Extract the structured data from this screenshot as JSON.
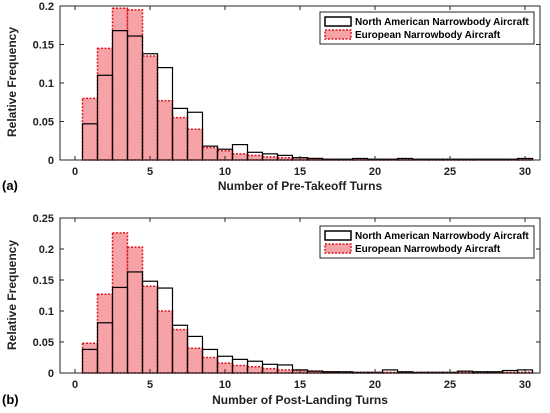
{
  "colors": {
    "na_edge": "#000000",
    "eu_edge": "#e0141e",
    "eu_fill": "#f6a3a8",
    "axis": "#262626"
  },
  "chart_data": [
    {
      "type": "bar",
      "panel_label": "(a)",
      "xlabel": "Number of Pre-Takeoff Turns",
      "ylabel": "Relative Frequency",
      "xlim": [
        -1,
        31
      ],
      "ylim": [
        0,
        0.2
      ],
      "xticks": [
        0,
        5,
        10,
        15,
        20,
        25,
        30
      ],
      "yticks": [
        0,
        0.05,
        0.1,
        0.15,
        0.2
      ],
      "ytick_labels": [
        "0",
        "0.05",
        "0.1",
        "0.15",
        "0.2"
      ],
      "grid": false,
      "legend_position": "top-right",
      "categories": [
        1,
        2,
        3,
        4,
        5,
        6,
        7,
        8,
        9,
        10,
        11,
        12,
        13,
        14,
        15,
        16,
        17,
        18,
        19,
        20,
        21,
        22,
        23,
        24,
        25,
        26,
        27,
        28,
        29,
        30
      ],
      "series": [
        {
          "name": "European Narrowbody Aircraft",
          "style": "eu",
          "values": [
            0.08,
            0.145,
            0.197,
            0.195,
            0.135,
            0.077,
            0.055,
            0.04,
            0.016,
            0.012,
            0.008,
            0.006,
            0.004,
            0.003,
            0.003,
            0.002,
            0.001,
            0.001,
            0.001,
            0.001,
            0.001,
            0.001,
            0.001,
            0.001,
            0.001,
            0.001,
            0.001,
            0.001,
            0.001,
            0.001
          ]
        },
        {
          "name": "North American Narrowbody Aircraft",
          "style": "na",
          "values": [
            0.047,
            0.11,
            0.168,
            0.161,
            0.138,
            0.12,
            0.067,
            0.062,
            0.018,
            0.014,
            0.02,
            0.01,
            0.008,
            0.006,
            0.003,
            0.002,
            0.001,
            0.001,
            0.002,
            0.001,
            0.001,
            0.002,
            0.001,
            0.001,
            0.001,
            0.001,
            0.001,
            0.001,
            0.001,
            0.002
          ]
        }
      ]
    },
    {
      "type": "bar",
      "panel_label": "(b)",
      "xlabel": "Number of Post-Landing Turns",
      "ylabel": "Relative Frequency",
      "xlim": [
        -1,
        31
      ],
      "ylim": [
        0,
        0.25
      ],
      "xticks": [
        0,
        5,
        10,
        15,
        20,
        25,
        30
      ],
      "yticks": [
        0,
        0.05,
        0.1,
        0.15,
        0.2,
        0.25
      ],
      "ytick_labels": [
        "0",
        "0.05",
        "0.1",
        "0.15",
        "0.2",
        "0.25"
      ],
      "grid": false,
      "legend_position": "top-right",
      "categories": [
        1,
        2,
        3,
        4,
        5,
        6,
        7,
        8,
        9,
        10,
        11,
        12,
        13,
        14,
        15,
        16,
        17,
        18,
        19,
        20,
        21,
        22,
        23,
        24,
        25,
        26,
        27,
        28,
        29,
        30
      ],
      "series": [
        {
          "name": "European Narrowbody Aircraft",
          "style": "eu",
          "values": [
            0.048,
            0.127,
            0.226,
            0.203,
            0.14,
            0.1,
            0.07,
            0.04,
            0.025,
            0.016,
            0.012,
            0.01,
            0.007,
            0.005,
            0.004,
            0.003,
            0.002,
            0.001,
            0.001,
            0.001,
            0.001,
            0.001,
            0.001,
            0.001,
            0.001,
            0.001,
            0.001,
            0.001,
            0.001,
            0.001
          ]
        },
        {
          "name": "North American Narrowbody Aircraft",
          "style": "na",
          "values": [
            0.038,
            0.081,
            0.138,
            0.163,
            0.148,
            0.137,
            0.077,
            0.059,
            0.038,
            0.027,
            0.022,
            0.019,
            0.014,
            0.013,
            0.005,
            0.003,
            0.002,
            0.002,
            0.001,
            0.001,
            0.005,
            0.002,
            0.001,
            0.001,
            0.001,
            0.003,
            0.002,
            0.002,
            0.004,
            0.005
          ]
        }
      ]
    }
  ]
}
